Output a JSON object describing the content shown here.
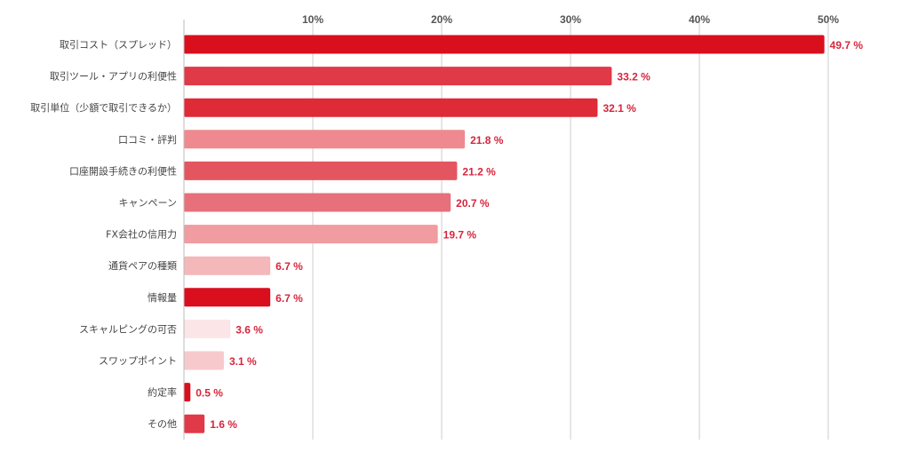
{
  "chart_data": {
    "type": "bar",
    "orientation": "horizontal",
    "title": "",
    "xlabel": "",
    "ylabel": "",
    "xlim": [
      0,
      50
    ],
    "ticks": [
      {
        "value": 10,
        "label": "10%"
      },
      {
        "value": 20,
        "label": "20%"
      },
      {
        "value": 30,
        "label": "30%"
      },
      {
        "value": 40,
        "label": "40%"
      },
      {
        "value": 50,
        "label": "50%"
      }
    ],
    "grid": true,
    "legend": "none",
    "categories": [
      "取引コスト（スプレッド）",
      "取引ツール・アプリの利便性",
      "取引単位（少額で取引できるか）",
      "口コミ・評判",
      "口座開設手続きの利便性",
      "キャンペーン",
      "FX会社の信用力",
      "通貨ペアの種類",
      "情報量",
      "スキャルピングの可否",
      "スワップポイント",
      "約定率",
      "その他"
    ],
    "values": [
      49.7,
      33.2,
      32.1,
      21.8,
      21.2,
      20.7,
      19.7,
      6.7,
      6.7,
      3.6,
      3.1,
      0.5,
      1.6
    ],
    "value_labels": [
      "49.7 %",
      "33.2 %",
      "32.1 %",
      "21.8 %",
      "21.2 %",
      "20.7 %",
      "19.7 %",
      "6.7 %",
      "6.7 %",
      "3.6 %",
      "3.1 %",
      "0.5 %",
      "1.6 %"
    ],
    "colors": [
      "#d90f1e",
      "#e03947",
      "#df2a37",
      "#ee8a8f",
      "#e35660",
      "#e8707a",
      "#f09ca1",
      "#f4b7ba",
      "#d90f1e",
      "#fce5e7",
      "#f7c9cd",
      "#d90f1e",
      "#e03947"
    ],
    "value_label_color": "#d7263d"
  }
}
